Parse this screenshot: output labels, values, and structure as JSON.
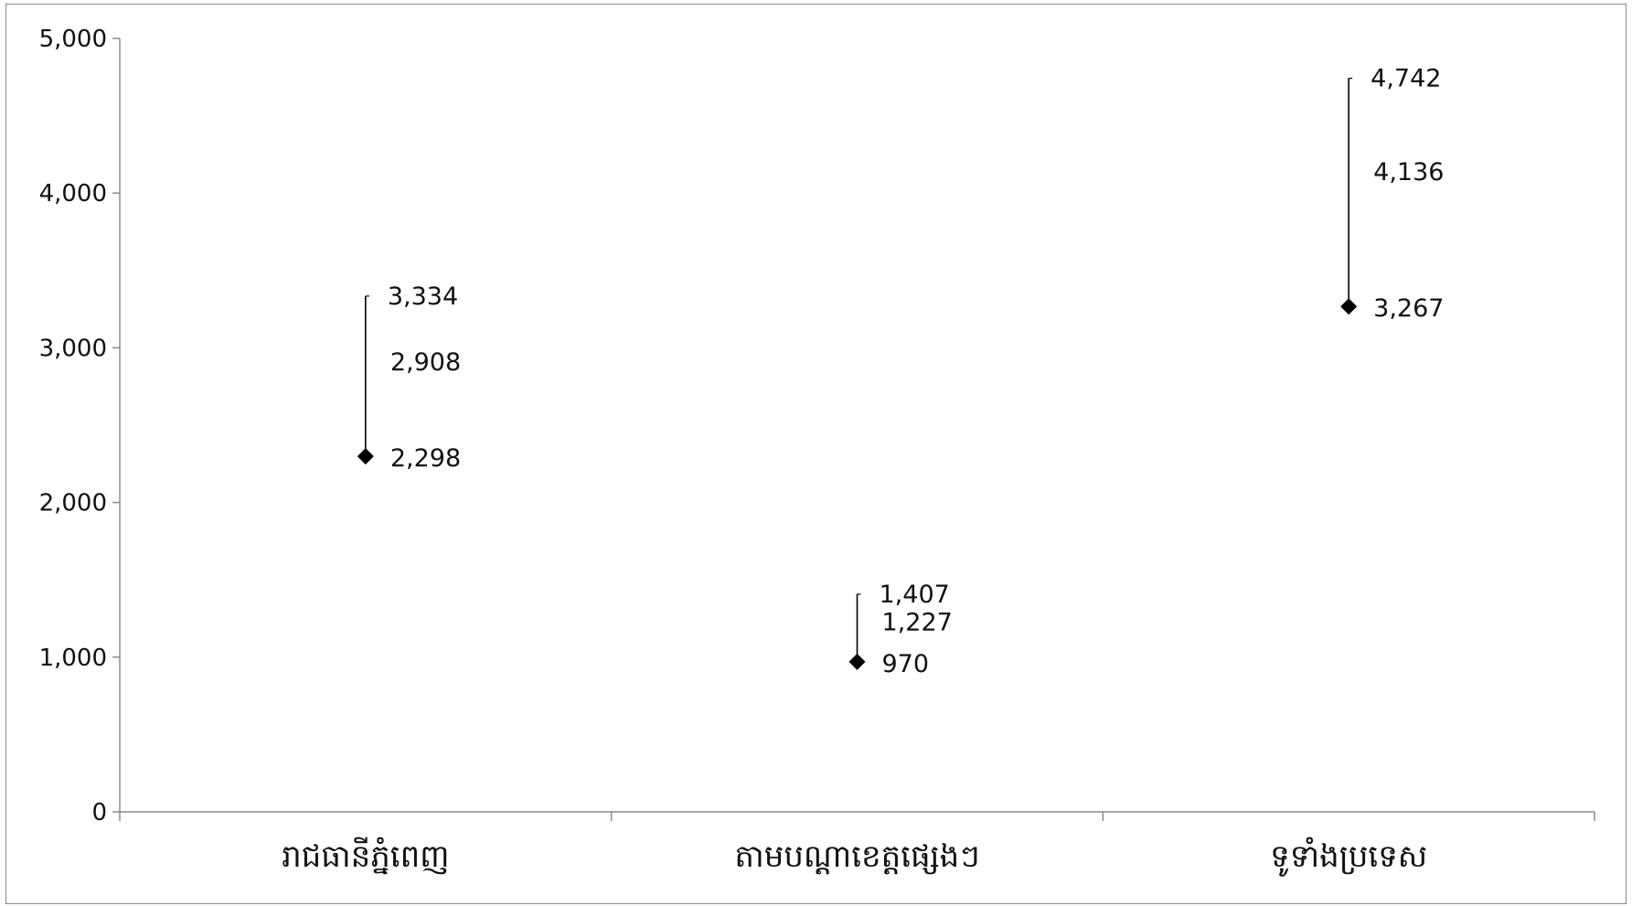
{
  "chart_data": {
    "type": "scatter",
    "title": "",
    "xlabel": "",
    "ylabel": "",
    "ylim": [
      0,
      5000
    ],
    "y_ticks": [
      0,
      1000,
      2000,
      3000,
      4000,
      5000
    ],
    "y_tick_labels": [
      "0",
      "1,000",
      "2,000",
      "3,000",
      "4,000",
      "5,000"
    ],
    "grid": false,
    "legend": "none",
    "categories": [
      "រាជធានីភ្នំពេញ",
      "តាមបណ្តាខេត្តផ្សេងៗ",
      "ទូទាំងប្រទេស"
    ],
    "points": [
      {
        "low": 2298,
        "mid": 2908,
        "high": 3334,
        "low_label": "2,298",
        "mid_label": "2,908",
        "high_label": "3,334"
      },
      {
        "low": 970,
        "mid": 1227,
        "high": 1407,
        "low_label": "970",
        "mid_label": "1,227",
        "high_label": "1,407"
      },
      {
        "low": 3267,
        "mid": 4136,
        "high": 4742,
        "low_label": "3,267",
        "mid_label": "4,136",
        "high_label": "4,742"
      }
    ],
    "colors": {
      "axis": "#8c8c8c",
      "marker": "#000000",
      "range_line": "#000000",
      "text": "#111111"
    }
  }
}
